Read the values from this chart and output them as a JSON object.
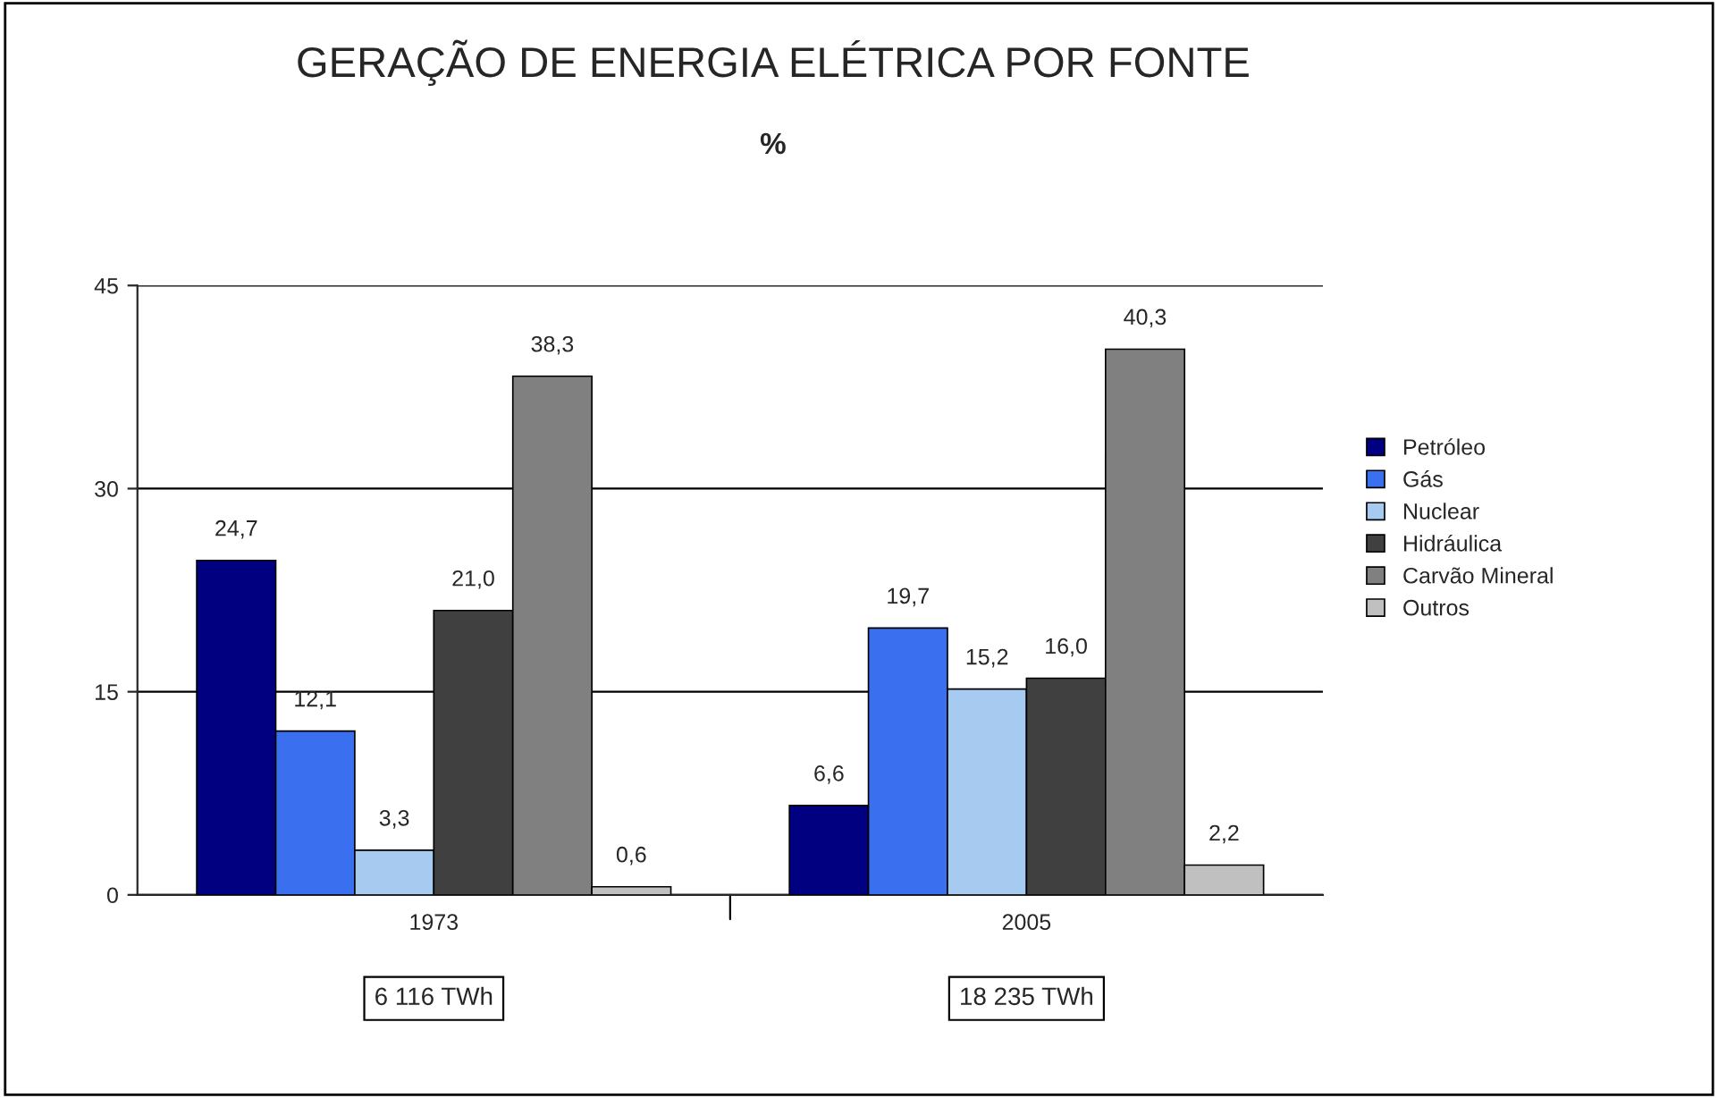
{
  "chart_data": {
    "type": "bar",
    "title": "GERAÇÃO DE ENERGIA ELÉTRICA POR FONTE",
    "subtitle": "%",
    "categories": [
      "1973",
      "2005"
    ],
    "series": [
      {
        "name": "Petróleo",
        "color": "#000080",
        "values": [
          24.7,
          6.6
        ],
        "value_labels": [
          "24,7",
          "6,6"
        ]
      },
      {
        "name": "Gás",
        "color": "#3a6ff0",
        "values": [
          12.1,
          19.7
        ],
        "value_labels": [
          "12,1",
          "19,7"
        ]
      },
      {
        "name": "Nuclear",
        "color": "#a6caf0",
        "values": [
          3.3,
          15.2
        ],
        "value_labels": [
          "3,3",
          "15,2"
        ]
      },
      {
        "name": "Hidráulica",
        "color": "#404040",
        "values": [
          21.0,
          16.0
        ],
        "value_labels": [
          "21,0",
          "16,0"
        ]
      },
      {
        "name": "Carvão Mineral",
        "color": "#808080",
        "values": [
          38.3,
          40.3
        ],
        "value_labels": [
          "38,3",
          "40,3"
        ]
      },
      {
        "name": "Outros",
        "color": "#c0c0c0",
        "values": [
          0.6,
          2.2
        ],
        "value_labels": [
          "0,6",
          "2,2"
        ]
      }
    ],
    "ylim": [
      0,
      45
    ],
    "yticks": [
      0,
      15,
      30,
      45
    ],
    "grid": "y",
    "legend": "right",
    "annotations": [
      "6 116 TWh",
      "18 235 TWh"
    ]
  }
}
